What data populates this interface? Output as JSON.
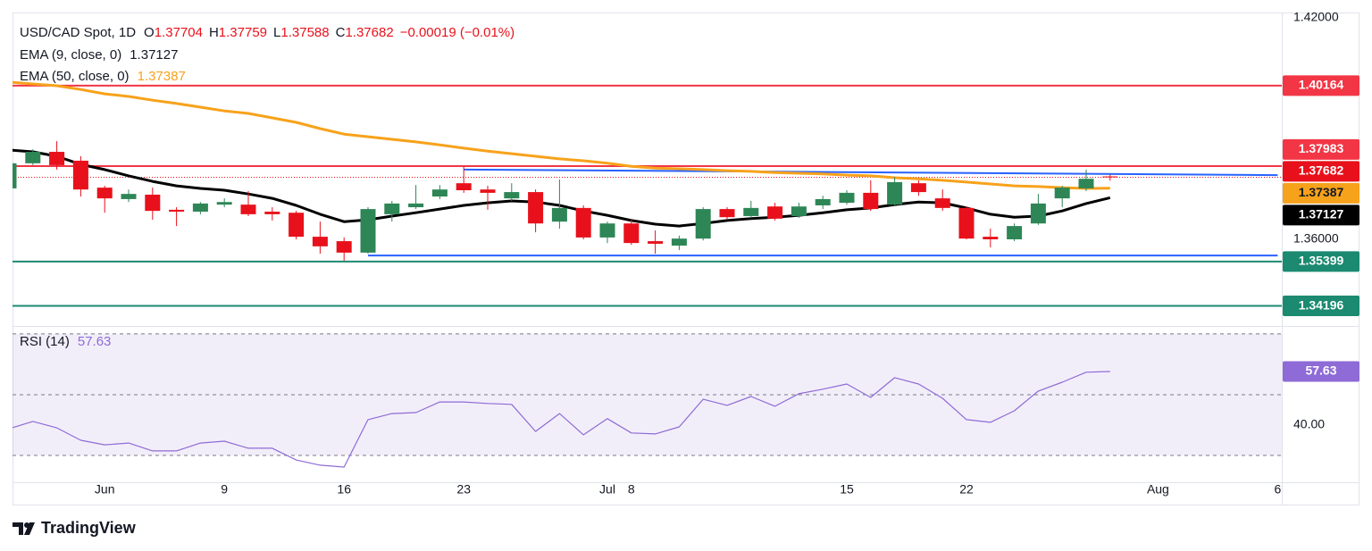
{
  "branding": "TradingView",
  "chart_data": [
    {
      "type": "candlestick",
      "title": "USD/CAD Spot, 1D",
      "ohlc_labels": [
        "O",
        "H",
        "L",
        "C"
      ],
      "change": "−0.00019 (−0.01%)",
      "categories": [
        null,
        null,
        null,
        null,
        "Jun",
        null,
        null,
        null,
        null,
        "9",
        null,
        null,
        null,
        null,
        "16",
        null,
        null,
        null,
        null,
        "23",
        null,
        null,
        null,
        null,
        null,
        "Jul",
        "8",
        null,
        null,
        null,
        null,
        null,
        null,
        null,
        null,
        "15",
        null,
        null,
        null,
        null,
        "22",
        null,
        null,
        null,
        null,
        null,
        null,
        null,
        "Aug",
        null,
        null,
        null,
        null,
        "6"
      ],
      "open": [
        1.3738,
        1.3806,
        1.3837,
        1.3813,
        1.374,
        1.3709,
        1.3721,
        1.368,
        1.3675,
        1.3694,
        1.3694,
        1.3675,
        1.3672,
        1.3607,
        1.3595,
        1.3564,
        1.3668,
        1.3687,
        1.3716,
        1.3752,
        1.3735,
        1.3711,
        1.3728,
        1.3648,
        1.3685,
        1.3605,
        1.3643,
        1.3595,
        1.3583,
        1.3602,
        1.3682,
        1.3663,
        1.3689,
        1.3663,
        1.3692,
        1.3699,
        1.3726,
        1.3694,
        1.3752,
        1.3711,
        1.3685,
        1.3607,
        1.36,
        1.3643,
        1.3711,
        1.3738,
        1.37704,
        null,
        null,
        null,
        null,
        null,
        null,
        null
      ],
      "high": [
        1.3813,
        1.3844,
        1.3866,
        1.3825,
        1.3745,
        1.3735,
        1.374,
        1.3687,
        1.3701,
        1.3711,
        1.3731,
        1.3687,
        1.3677,
        1.3648,
        1.3605,
        1.3687,
        1.3704,
        1.3747,
        1.3747,
        1.3798,
        1.3745,
        1.3752,
        1.3735,
        1.3762,
        1.3692,
        1.3648,
        1.3653,
        1.3624,
        1.361,
        1.3687,
        1.3687,
        1.3704,
        1.3699,
        1.3699,
        1.3718,
        1.3733,
        1.376,
        1.3769,
        1.376,
        1.3735,
        1.3689,
        1.3629,
        1.3643,
        1.3723,
        1.3745,
        1.3789,
        1.37759,
        null,
        null,
        null,
        null,
        null,
        null,
        null
      ],
      "low": [
        1.3735,
        1.3801,
        1.3789,
        1.3716,
        1.3672,
        1.3701,
        1.3653,
        1.3636,
        1.3668,
        1.3687,
        1.3663,
        1.3651,
        1.36,
        1.3561,
        1.3542,
        1.3561,
        1.3648,
        1.3682,
        1.3709,
        1.3726,
        1.368,
        1.3704,
        1.3619,
        1.3629,
        1.36,
        1.359,
        1.3585,
        1.3561,
        1.3571,
        1.3597,
        1.3653,
        1.3658,
        1.3651,
        1.3658,
        1.3682,
        1.3694,
        1.3677,
        1.3692,
        1.3718,
        1.3677,
        1.36,
        1.3578,
        1.3595,
        1.3639,
        1.3687,
        1.3731,
        1.37588,
        null,
        null,
        null,
        null,
        null,
        null,
        null
      ],
      "close": [
        1.3806,
        1.3837,
        1.3801,
        1.3735,
        1.3711,
        1.3723,
        1.3677,
        1.3675,
        1.3697,
        1.3701,
        1.3668,
        1.3668,
        1.3607,
        1.3581,
        1.3564,
        1.3682,
        1.3697,
        1.3697,
        1.3735,
        1.3733,
        1.3726,
        1.3728,
        1.3643,
        1.3685,
        1.3605,
        1.3643,
        1.359,
        1.3588,
        1.3602,
        1.3682,
        1.366,
        1.3685,
        1.3656,
        1.3689,
        1.3709,
        1.3726,
        1.3682,
        1.3755,
        1.3728,
        1.3685,
        1.3602,
        1.36,
        1.3636,
        1.3697,
        1.374,
        1.3764,
        1.37682,
        null,
        null,
        null,
        null,
        null,
        null,
        null
      ],
      "up_color": "#2e8656",
      "down_color": "#e8111b",
      "series": [
        {
          "name": "EMA (9, close, 0)",
          "color": "#000000",
          "label_text_color": "#ffffff",
          "values": [
            1.3842,
            1.3837,
            1.3825,
            1.3803,
            1.3789,
            1.3772,
            1.3757,
            1.3745,
            1.3738,
            1.3733,
            1.3723,
            1.3711,
            1.3692,
            1.3668,
            1.3648,
            1.3653,
            1.3663,
            1.3672,
            1.3682,
            1.3692,
            1.3699,
            1.3704,
            1.3701,
            1.3692,
            1.3677,
            1.3665,
            1.3651,
            1.3641,
            1.3636,
            1.3643,
            1.3651,
            1.3656,
            1.366,
            1.3665,
            1.3672,
            1.368,
            1.3685,
            1.3694,
            1.3701,
            1.3699,
            1.3685,
            1.3668,
            1.366,
            1.3663,
            1.3677,
            1.3697,
            1.37127,
            null,
            null,
            null,
            null,
            null,
            null,
            null
          ]
        },
        {
          "name": "EMA (50, close, 0)",
          "color": "#f7a21b",
          "label_text_color": "#131722",
          "values": [
            1.4026,
            1.4021,
            1.4016,
            1.4006,
            1.3994,
            1.3987,
            1.3977,
            1.3968,
            1.3958,
            1.3948,
            1.3941,
            1.3929,
            1.3917,
            1.39,
            1.3885,
            1.3878,
            1.3871,
            1.3864,
            1.3856,
            1.3847,
            1.3839,
            1.3832,
            1.3825,
            1.3818,
            1.3813,
            1.3806,
            1.3798,
            1.3793,
            1.3791,
            1.3789,
            1.3786,
            1.3784,
            1.3781,
            1.3779,
            1.3777,
            1.3774,
            1.3772,
            1.3767,
            1.3764,
            1.376,
            1.3755,
            1.375,
            1.3745,
            1.3743,
            1.374,
            1.3738,
            1.37387,
            null,
            null,
            null,
            null,
            null,
            null,
            null
          ]
        }
      ],
      "levels": [
        {
          "value": 1.40164,
          "color": "#f23645"
        },
        {
          "value": 1.37983,
          "color": "#f23645"
        },
        {
          "value": 1.35399,
          "color": "#1b8a70"
        },
        {
          "value": 1.34196,
          "color": "#1b8a70"
        }
      ],
      "trend_lines": [
        {
          "color": "#2962ff",
          "x": [
            19,
            53
          ],
          "values": [
            1.3789,
            1.3774
          ]
        },
        {
          "color": "#2962ff",
          "x": [
            15,
            53
          ],
          "values": [
            1.3556,
            1.3556
          ]
        }
      ],
      "ylim": [
        1.33653,
        1.42145
      ],
      "yticks": [
        {
          "value": 1.42,
          "label": "1.42000"
        },
        {
          "value": 1.36,
          "label": "1.36000"
        }
      ],
      "grid": false
    },
    {
      "type": "line",
      "series": [
        {
          "name": "RSI (14)",
          "color": "#8e6bd6",
          "values": [
            38.8,
            41.2,
            39.1,
            35.0,
            33.5,
            34.1,
            31.5,
            31.5,
            34.1,
            34.7,
            32.4,
            32.4,
            28.5,
            26.8,
            26.2,
            41.8,
            43.8,
            44.1,
            47.6,
            47.6,
            47.1,
            46.8,
            37.9,
            43.8,
            36.8,
            42.1,
            37.4,
            37.1,
            39.4,
            48.5,
            46.5,
            49.4,
            46.2,
            50.3,
            51.8,
            53.5,
            49.1,
            55.6,
            53.5,
            48.8,
            41.8,
            40.9,
            44.7,
            51.2,
            54.1,
            57.4,
            57.63,
            null,
            null,
            null,
            null,
            null,
            null,
            null
          ]
        }
      ],
      "levels": [
        70,
        50,
        30
      ],
      "band_color": "#7e57c2",
      "ylim": [
        21.2,
        72.6
      ],
      "yticks": [
        {
          "value": 40,
          "label": "40.00"
        }
      ],
      "grid": false
    }
  ]
}
